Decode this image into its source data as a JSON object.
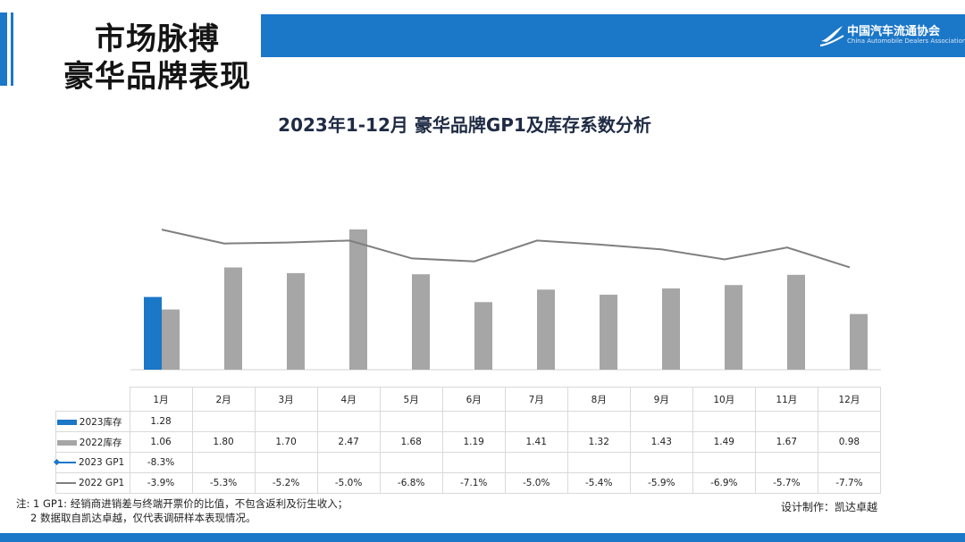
{
  "header": {
    "title_line1": "市场脉搏",
    "title_line2": "豪华品牌表现",
    "logo_cn": "中国汽车流通协会",
    "logo_en": "China Automobile Dealers Association"
  },
  "colors": {
    "accent": "#1b77c8",
    "bar2022": "#a6a6a6",
    "line2022": "#7f7f7f"
  },
  "chart_data": {
    "type": "bar",
    "title": "2023年1-12月 豪华品牌GP1及库存系数分析",
    "categories": [
      "1月",
      "2月",
      "3月",
      "4月",
      "5月",
      "6月",
      "7月",
      "8月",
      "9月",
      "10月",
      "11月",
      "12月"
    ],
    "series": [
      {
        "name": "2023库存",
        "kind": "bar",
        "values": [
          1.28,
          null,
          null,
          null,
          null,
          null,
          null,
          null,
          null,
          null,
          null,
          null
        ],
        "labels": [
          "1.28",
          "",
          "",
          "",
          "",
          "",
          "",
          "",
          "",
          "",
          "",
          ""
        ]
      },
      {
        "name": "2022库存",
        "kind": "bar",
        "values": [
          1.06,
          1.8,
          1.7,
          2.47,
          1.68,
          1.19,
          1.41,
          1.32,
          1.43,
          1.49,
          1.67,
          0.98
        ],
        "labels": [
          "1.06",
          "1.80",
          "1.70",
          "2.47",
          "1.68",
          "1.19",
          "1.41",
          "1.32",
          "1.43",
          "1.49",
          "1.67",
          "0.98"
        ]
      },
      {
        "name": "2023 GP1",
        "kind": "line",
        "values": [
          -8.3,
          null,
          null,
          null,
          null,
          null,
          null,
          null,
          null,
          null,
          null,
          null
        ],
        "labels": [
          "-8.3%",
          "",
          "",
          "",
          "",
          "",
          "",
          "",
          "",
          "",
          "",
          ""
        ]
      },
      {
        "name": "2022 GP1",
        "kind": "line",
        "values": [
          -3.9,
          -5.3,
          -5.2,
          -5.0,
          -6.8,
          -7.1,
          -5.0,
          -5.4,
          -5.9,
          -6.9,
          -5.7,
          -7.7
        ],
        "labels": [
          "-3.9%",
          "-5.3%",
          "-5.2%",
          "-5.0%",
          "-6.8%",
          "-7.1%",
          "-5.0%",
          "-5.4%",
          "-5.9%",
          "-6.9%",
          "-5.7%",
          "-7.7%"
        ]
      }
    ],
    "bar_ylim": [
      0,
      2.5
    ],
    "line_ylim": [
      -18,
      -2
    ]
  },
  "notes": {
    "line1": "注: 1 GP1: 经销商进销差与终端开票价的比值，不包含返利及衍生收入；",
    "line2": "2 数据取自凯达卓越，仅代表调研样本表现情况。"
  },
  "credit": "设计制作：凯达卓越"
}
